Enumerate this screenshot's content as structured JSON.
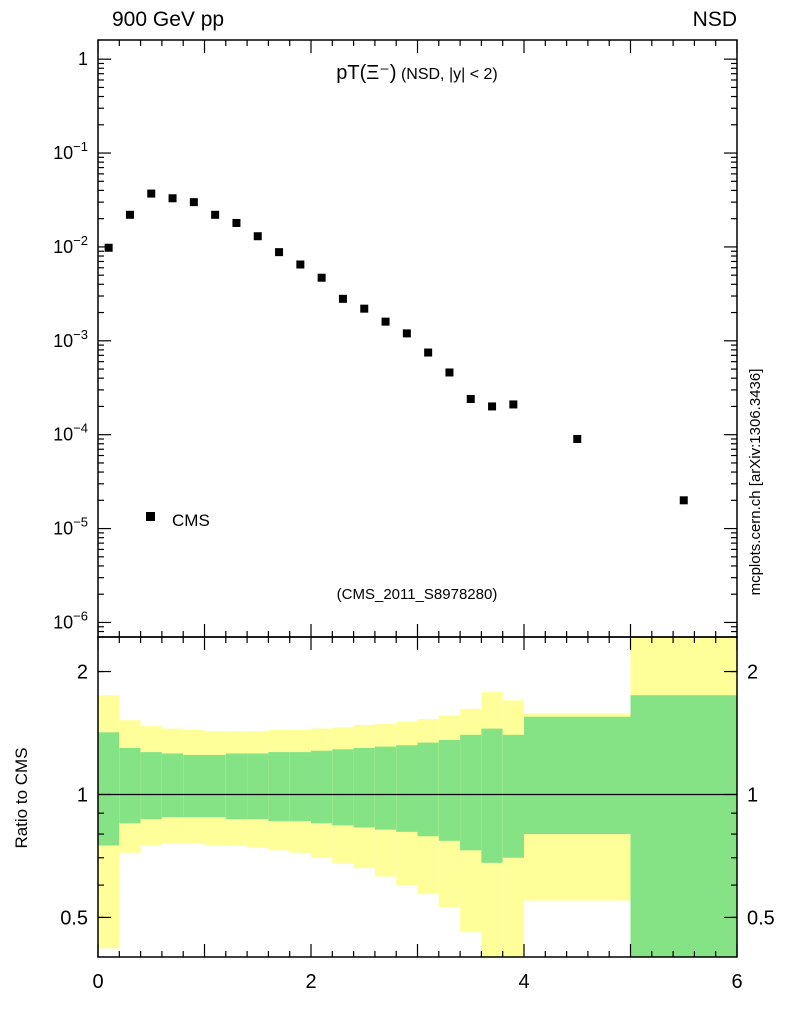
{
  "header": {
    "left": "900 GeV pp",
    "right": "NSD"
  },
  "side_label": "mcplots.cern.ch [arXiv:1306.3436]",
  "chart_data": [
    {
      "type": "scatter",
      "title_head": "pT(Ξ⁻)",
      "title_tail": " (NSD, |y| < 2)",
      "watermark": "(CMS_2011_S8978280)",
      "legend": [
        {
          "name": "CMS",
          "marker": "filled-square",
          "color": "#000000"
        }
      ],
      "xlim": [
        0,
        6
      ],
      "ylog": true,
      "ylim": [
        7e-07,
        1.6
      ],
      "ytick_values": [
        1,
        0.1,
        0.01,
        0.001,
        0.0001,
        1e-05,
        1e-06
      ],
      "ytick_labels": [
        "1",
        "10^−1",
        "10^−2",
        "10^−3",
        "10^−4",
        "10^−5",
        "10^−6"
      ],
      "xtick_values": [
        0,
        1,
        2,
        3,
        4,
        5,
        6
      ],
      "series": [
        {
          "name": "CMS",
          "x": [
            0.1,
            0.3,
            0.5,
            0.7,
            0.9,
            1.1,
            1.3,
            1.5,
            1.7,
            1.9,
            2.1,
            2.3,
            2.5,
            2.7,
            2.9,
            3.1,
            3.3,
            3.5,
            3.7,
            3.9,
            4.5,
            5.5
          ],
          "y": [
            0.0098,
            0.022,
            0.037,
            0.033,
            0.03,
            0.022,
            0.018,
            0.013,
            0.0088,
            0.0065,
            0.0047,
            0.0028,
            0.0022,
            0.0016,
            0.0012,
            0.00075,
            0.00046,
            0.00024,
            0.0002,
            0.00021,
            9e-05,
            2e-05
          ]
        }
      ]
    },
    {
      "type": "area",
      "ylabel": "Ratio to CMS",
      "ylog": true,
      "ylim": [
        0.4,
        2.43
      ],
      "xlim": [
        0,
        6
      ],
      "ytick_values": [
        0.5,
        1,
        2
      ],
      "ytick_labels": [
        "0.5",
        "1",
        "2"
      ],
      "xtick_values": [
        0,
        2,
        4,
        6
      ],
      "xtick_labels": [
        "0",
        "2",
        "4",
        "6"
      ],
      "reference_line": 1,
      "band_colors": {
        "outer": "#ffff99",
        "inner": "#86e385"
      },
      "bin_edges": [
        0,
        0.2,
        0.4,
        0.6,
        0.8,
        1.0,
        1.2,
        1.4,
        1.6,
        1.8,
        2.0,
        2.2,
        2.4,
        2.6,
        2.8,
        3.0,
        3.2,
        3.4,
        3.6,
        3.8,
        4.0,
        5.0,
        6.0
      ],
      "bands": {
        "outer_lo": [
          0.42,
          0.72,
          0.75,
          0.76,
          0.76,
          0.75,
          0.75,
          0.74,
          0.73,
          0.72,
          0.7,
          0.68,
          0.66,
          0.63,
          0.6,
          0.57,
          0.53,
          0.46,
          0.38,
          0.4,
          0.55,
          0.3
        ],
        "outer_hi": [
          1.75,
          1.52,
          1.47,
          1.45,
          1.44,
          1.43,
          1.43,
          1.43,
          1.44,
          1.44,
          1.45,
          1.46,
          1.48,
          1.49,
          1.51,
          1.53,
          1.56,
          1.62,
          1.78,
          1.7,
          1.58,
          2.5
        ],
        "inner_lo": [
          0.75,
          0.85,
          0.87,
          0.88,
          0.88,
          0.88,
          0.87,
          0.87,
          0.86,
          0.86,
          0.85,
          0.84,
          0.83,
          0.82,
          0.81,
          0.79,
          0.77,
          0.73,
          0.68,
          0.7,
          0.8,
          0.3
        ],
        "inner_hi": [
          1.42,
          1.3,
          1.27,
          1.26,
          1.25,
          1.25,
          1.26,
          1.26,
          1.27,
          1.27,
          1.28,
          1.29,
          1.3,
          1.31,
          1.32,
          1.34,
          1.36,
          1.4,
          1.45,
          1.4,
          1.55,
          1.75
        ]
      }
    }
  ]
}
